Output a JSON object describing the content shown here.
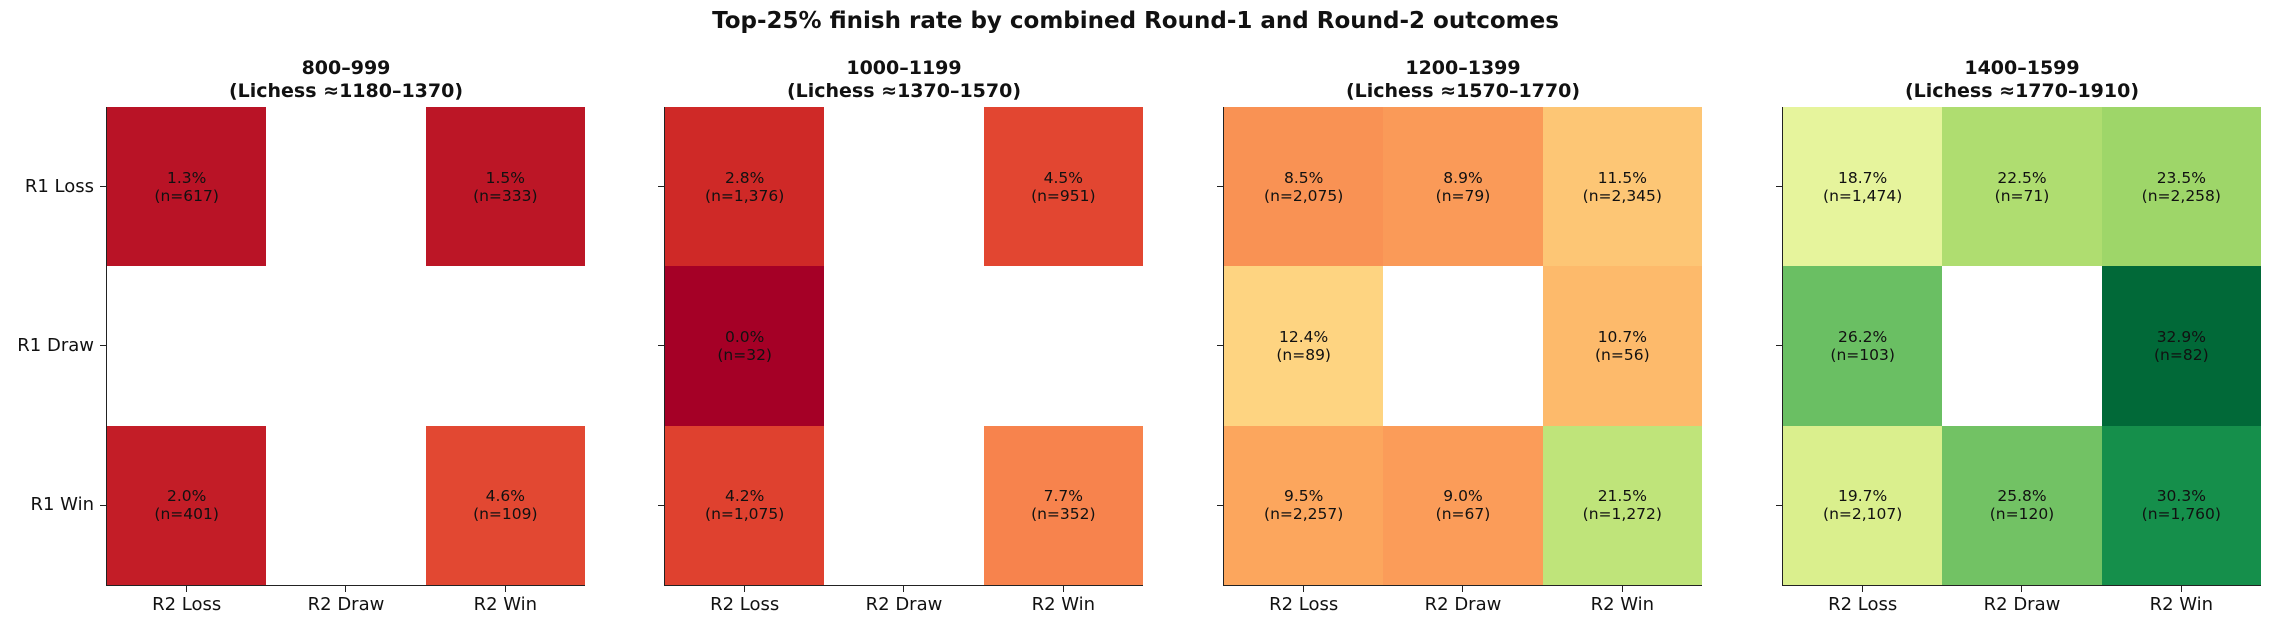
{
  "suptitle": "Top-25% finish rate by combined Round-1 and Round-2 outcomes",
  "chart_data": {
    "type": "heatmap",
    "row_labels": [
      "R1 Loss",
      "R1 Draw",
      "R1 Win"
    ],
    "col_labels": [
      "R2 Loss",
      "R2 Draw",
      "R2 Win"
    ],
    "color_scale": "RdYlGn",
    "value_range": [
      0,
      33
    ],
    "panels": [
      {
        "title": "800–999\n(Lichess ≈1180–1370)",
        "cells": [
          [
            {
              "rate": 1.3,
              "label": "1.3%",
              "n": "(n=617)"
            },
            null,
            {
              "rate": 1.5,
              "label": "1.5%",
              "n": "(n=333)"
            }
          ],
          [
            null,
            null,
            null
          ],
          [
            {
              "rate": 2.0,
              "label": "2.0%",
              "n": "(n=401)"
            },
            null,
            {
              "rate": 4.6,
              "label": "4.6%",
              "n": "(n=109)"
            }
          ]
        ]
      },
      {
        "title": "1000–1199\n(Lichess ≈1370–1570)",
        "cells": [
          [
            {
              "rate": 2.8,
              "label": "2.8%",
              "n": "(n=1,376)"
            },
            null,
            {
              "rate": 4.5,
              "label": "4.5%",
              "n": "(n=951)"
            }
          ],
          [
            {
              "rate": 0.0,
              "label": "0.0%",
              "n": "(n=32)"
            },
            null,
            null
          ],
          [
            {
              "rate": 4.2,
              "label": "4.2%",
              "n": "(n=1,075)"
            },
            null,
            {
              "rate": 7.7,
              "label": "7.7%",
              "n": "(n=352)"
            }
          ]
        ]
      },
      {
        "title": "1200–1399\n(Lichess ≈1570–1770)",
        "cells": [
          [
            {
              "rate": 8.5,
              "label": "8.5%",
              "n": "(n=2,075)"
            },
            {
              "rate": 8.9,
              "label": "8.9%",
              "n": "(n=79)"
            },
            {
              "rate": 11.5,
              "label": "11.5%",
              "n": "(n=2,345)"
            }
          ],
          [
            {
              "rate": 12.4,
              "label": "12.4%",
              "n": "(n=89)"
            },
            null,
            {
              "rate": 10.7,
              "label": "10.7%",
              "n": "(n=56)"
            }
          ],
          [
            {
              "rate": 9.5,
              "label": "9.5%",
              "n": "(n=2,257)"
            },
            {
              "rate": 9.0,
              "label": "9.0%",
              "n": "(n=67)"
            },
            {
              "rate": 21.5,
              "label": "21.5%",
              "n": "(n=1,272)"
            }
          ]
        ]
      },
      {
        "title": "1400–1599\n(Lichess ≈1770–1910)",
        "cells": [
          [
            {
              "rate": 18.7,
              "label": "18.7%",
              "n": "(n=1,474)"
            },
            {
              "rate": 22.5,
              "label": "22.5%",
              "n": "(n=71)"
            },
            {
              "rate": 23.5,
              "label": "23.5%",
              "n": "(n=2,258)"
            }
          ],
          [
            {
              "rate": 26.2,
              "label": "26.2%",
              "n": "(n=103)"
            },
            null,
            {
              "rate": 32.9,
              "label": "32.9%",
              "n": "(n=82)"
            }
          ],
          [
            {
              "rate": 19.7,
              "label": "19.7%",
              "n": "(n=2,107)"
            },
            {
              "rate": 25.8,
              "label": "25.8%",
              "n": "(n=120)"
            },
            {
              "rate": 30.3,
              "label": "30.3%",
              "n": "(n=1,760)"
            }
          ]
        ]
      }
    ]
  }
}
